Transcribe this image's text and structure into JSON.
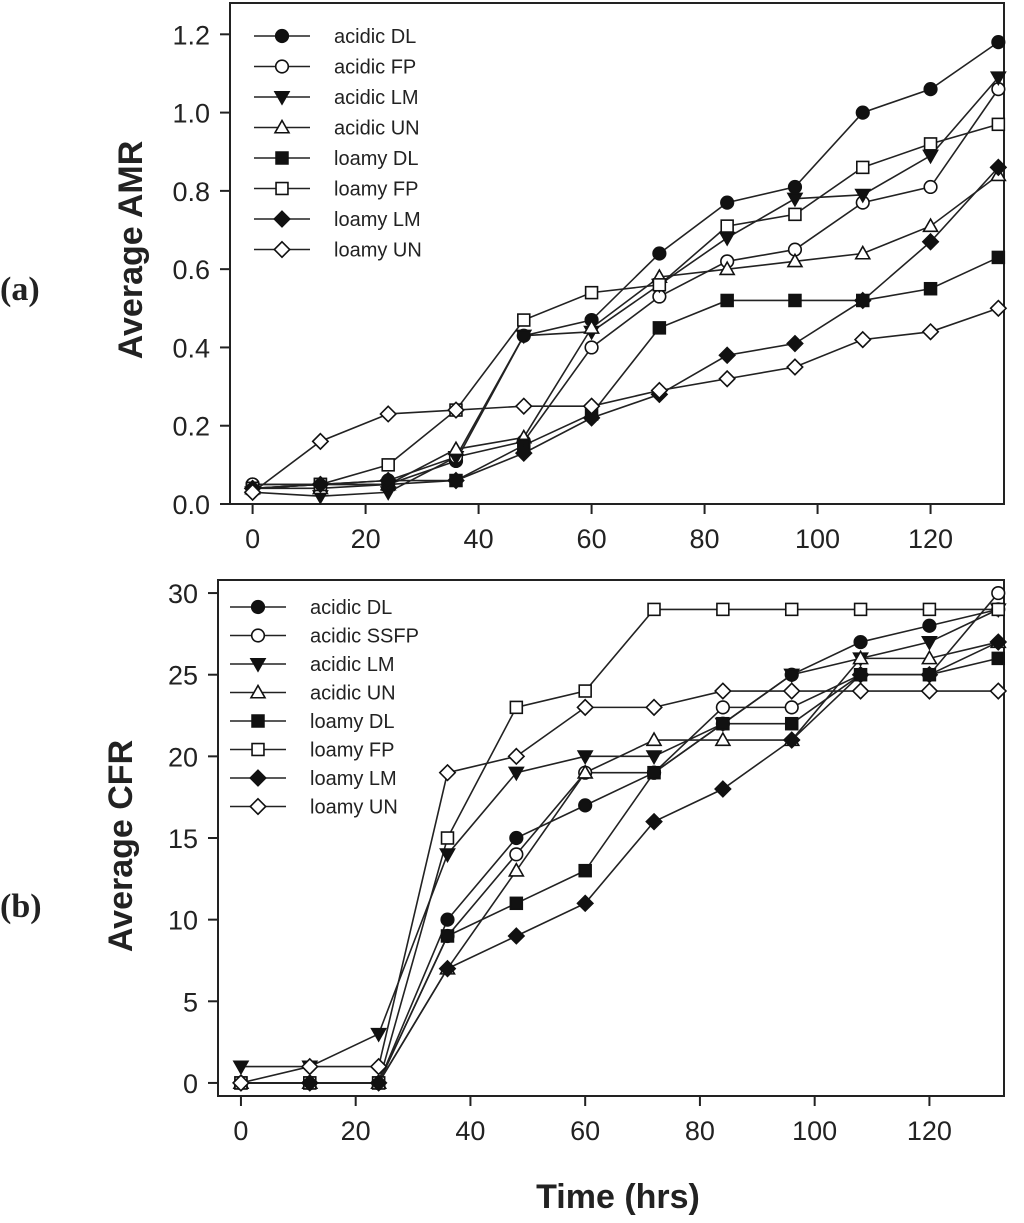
{
  "chart_data": [
    {
      "type": "line",
      "panel_label": "(a)",
      "ylabel": "Average AMR",
      "xlabel": "",
      "xlim": [
        -4,
        133
      ],
      "ylim": [
        0,
        1.28
      ],
      "xticks": [
        0,
        20,
        40,
        60,
        80,
        100,
        120
      ],
      "yticks": [
        0.0,
        0.2,
        0.4,
        0.6,
        0.8,
        1.0,
        1.2
      ],
      "ytick_labels": [
        "0.0",
        "0.2",
        "0.4",
        "0.6",
        "0.8",
        "1.0",
        "1.2"
      ],
      "legend_position": "top-left",
      "x": [
        0,
        12,
        24,
        36,
        48,
        60,
        72,
        84,
        96,
        108,
        120,
        132
      ],
      "series": [
        {
          "name": "acidic DL",
          "marker": "circle-filled",
          "values": [
            0.05,
            0.05,
            0.05,
            0.11,
            0.43,
            0.47,
            0.64,
            0.77,
            0.81,
            1.0,
            1.06,
            1.18
          ]
        },
        {
          "name": "acidic FP",
          "marker": "circle-open",
          "values": [
            0.05,
            0.05,
            0.06,
            0.12,
            0.16,
            0.4,
            0.53,
            0.62,
            0.65,
            0.77,
            0.81,
            1.06
          ]
        },
        {
          "name": "acidic LM",
          "marker": "triangle-down-filled",
          "values": [
            0.03,
            0.02,
            0.03,
            0.12,
            0.43,
            0.44,
            0.56,
            0.68,
            0.78,
            0.79,
            0.89,
            1.09
          ]
        },
        {
          "name": "acidic UN",
          "marker": "triangle-up-open",
          "values": [
            0.04,
            0.04,
            0.05,
            0.14,
            0.17,
            0.45,
            0.58,
            0.6,
            0.62,
            0.64,
            0.71,
            0.84
          ]
        },
        {
          "name": "loamy DL",
          "marker": "square-filled",
          "values": [
            0.04,
            0.05,
            0.05,
            0.06,
            0.15,
            0.23,
            0.45,
            0.52,
            0.52,
            0.52,
            0.55,
            0.63
          ]
        },
        {
          "name": "loamy FP",
          "marker": "square-open",
          "values": [
            0.04,
            0.05,
            0.1,
            0.24,
            0.47,
            0.54,
            0.56,
            0.71,
            0.74,
            0.86,
            0.92,
            0.97
          ]
        },
        {
          "name": "loamy LM",
          "marker": "diamond-filled",
          "values": [
            0.04,
            0.05,
            0.06,
            0.06,
            0.13,
            0.22,
            0.28,
            0.38,
            0.41,
            0.52,
            0.67,
            0.86
          ]
        },
        {
          "name": "loamy UN",
          "marker": "diamond-open",
          "values": [
            0.03,
            0.16,
            0.23,
            0.24,
            0.25,
            0.25,
            0.29,
            0.32,
            0.35,
            0.42,
            0.44,
            0.5
          ]
        }
      ]
    },
    {
      "type": "line",
      "panel_label": "(b)",
      "ylabel": "Average CFR",
      "xlabel": "Time (hrs)",
      "xlim": [
        -4,
        133
      ],
      "ylim": [
        -0.8,
        30.8
      ],
      "xticks": [
        0,
        20,
        40,
        60,
        80,
        100,
        120
      ],
      "yticks": [
        0,
        5,
        10,
        15,
        20,
        25,
        30
      ],
      "ytick_labels": [
        "0",
        "5",
        "10",
        "15",
        "20",
        "25",
        "30"
      ],
      "legend_position": "top-left",
      "x": [
        0,
        12,
        24,
        36,
        48,
        60,
        72,
        84,
        96,
        108,
        120,
        132
      ],
      "series": [
        {
          "name": "acidic DL",
          "marker": "circle-filled",
          "values": [
            0,
            0,
            0,
            10,
            15,
            17,
            19,
            22,
            25,
            27,
            28,
            29
          ]
        },
        {
          "name": "acidic SSFP",
          "marker": "circle-open",
          "values": [
            0,
            0,
            0,
            9,
            14,
            19,
            19,
            23,
            23,
            25,
            25,
            30
          ]
        },
        {
          "name": "acidic LM",
          "marker": "triangle-down-filled",
          "values": [
            1,
            1,
            3,
            14,
            19,
            20,
            20,
            22,
            25,
            26,
            27,
            29
          ]
        },
        {
          "name": "acidic UN",
          "marker": "triangle-up-open",
          "values": [
            0,
            0,
            0,
            7,
            13,
            19,
            21,
            21,
            21,
            26,
            26,
            27
          ]
        },
        {
          "name": "loamy DL",
          "marker": "square-filled",
          "values": [
            0,
            0,
            0,
            9,
            11,
            13,
            19,
            22,
            22,
            25,
            25,
            26
          ]
        },
        {
          "name": "loamy FP",
          "marker": "square-open",
          "values": [
            0,
            0,
            0,
            15,
            23,
            24,
            29,
            29,
            29,
            29,
            29,
            29
          ]
        },
        {
          "name": "loamy LM",
          "marker": "diamond-filled",
          "values": [
            0,
            0,
            0,
            7,
            9,
            11,
            16,
            18,
            21,
            25,
            25,
            27
          ]
        },
        {
          "name": "loamy UN",
          "marker": "diamond-open",
          "values": [
            0,
            1,
            1,
            19,
            20,
            23,
            23,
            24,
            24,
            24,
            24,
            24
          ]
        }
      ]
    }
  ]
}
